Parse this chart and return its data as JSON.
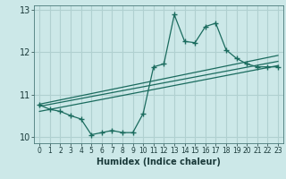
{
  "xlabel": "Humidex (Indice chaleur)",
  "background_color": "#cce8e8",
  "grid_color": "#b0d0d0",
  "line_color": "#1a6b5e",
  "xlim": [
    -0.5,
    23.5
  ],
  "ylim": [
    9.85,
    13.1
  ],
  "yticks": [
    10,
    11,
    12,
    13
  ],
  "xticks": [
    0,
    1,
    2,
    3,
    4,
    5,
    6,
    7,
    8,
    9,
    10,
    11,
    12,
    13,
    14,
    15,
    16,
    17,
    18,
    19,
    20,
    21,
    22,
    23
  ],
  "series1_x": [
    0,
    1,
    2,
    3,
    4,
    5,
    6,
    7,
    8,
    9,
    10,
    11,
    12,
    13,
    14,
    15,
    16,
    17,
    18,
    19,
    20,
    21,
    22,
    23
  ],
  "series1_y": [
    10.75,
    10.65,
    10.6,
    10.5,
    10.42,
    10.05,
    10.1,
    10.15,
    10.1,
    10.1,
    10.55,
    11.65,
    11.72,
    12.88,
    12.25,
    12.22,
    12.6,
    12.68,
    12.05,
    11.85,
    11.72,
    11.65,
    11.65,
    11.65
  ],
  "series2_x": [
    0,
    23
  ],
  "series2_y": [
    10.72,
    11.78
  ],
  "series3_x": [
    0,
    23
  ],
  "series3_y": [
    10.77,
    11.92
  ],
  "series4_x": [
    0,
    23
  ],
  "series4_y": [
    10.6,
    11.68
  ]
}
